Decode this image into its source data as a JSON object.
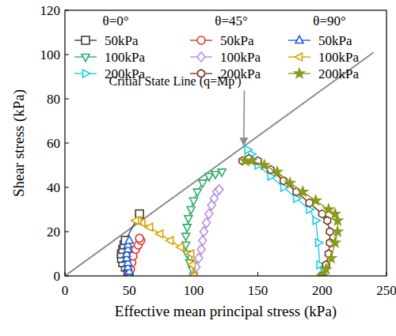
{
  "chart_data": {
    "type": "line",
    "x_label": "Effective mean principal stress (kPa)",
    "y_label": "Shear stress (kPa)",
    "xlim": [
      0,
      250
    ],
    "ylim": [
      0,
      120
    ],
    "xticks": [
      0,
      50,
      100,
      150,
      200,
      250
    ],
    "yticks": [
      0,
      20,
      40,
      60,
      80,
      100,
      120
    ],
    "grid": false,
    "legend": "upper left",
    "reference_line": {
      "label": "Critial State Line (q=Mp')",
      "color": "#8c8c8c",
      "x": [
        0,
        240
      ],
      "y": [
        0,
        101
      ],
      "arrow_xy": [
        139,
        59
      ],
      "text_xy": [
        137,
        86
      ]
    },
    "series": [
      {
        "name": "50kPa",
        "group": "θ=0°",
        "color": "#404040",
        "marker": "square",
        "line_style": "solid",
        "x": [
          50,
          49,
          47,
          45,
          44,
          44,
          45,
          46,
          47,
          58
        ],
        "values": [
          0,
          2,
          4,
          6,
          8,
          10,
          12,
          14,
          16,
          28
        ]
      },
      {
        "name": "100kPa",
        "group": "θ=0°",
        "color": "#2fae6a",
        "marker": "triangle-down",
        "line_style": "solid",
        "x": [
          100,
          99,
          97,
          95,
          94,
          94,
          95,
          96,
          98,
          100,
          103,
          107,
          112,
          117,
          122
        ],
        "values": [
          0,
          3,
          6,
          10,
          14,
          18,
          22,
          26,
          30,
          34,
          38,
          42,
          45,
          46,
          47
        ]
      },
      {
        "name": "200kPa",
        "group": "θ=0°",
        "color": "#19cfe6",
        "marker": "triangle-right",
        "line_style": "solid",
        "x": [
          200,
          198,
          197,
          195,
          190,
          180,
          170,
          160,
          150,
          145,
          142
        ],
        "values": [
          0,
          5,
          15,
          25,
          30,
          35,
          40,
          45,
          50,
          55,
          57
        ]
      },
      {
        "name": "50kPa",
        "group": "θ=45°",
        "color": "#e8332a",
        "marker": "circle",
        "line_style": "solid",
        "x": [
          50,
          51,
          52,
          53,
          55,
          57,
          59,
          58
        ],
        "values": [
          1,
          3,
          6,
          9,
          12,
          14,
          16,
          17
        ]
      },
      {
        "name": "100kPa",
        "group": "θ=45°",
        "color": "#b88fe8",
        "marker": "diamond",
        "line_style": "solid",
        "x": [
          100,
          102,
          104,
          106,
          107,
          108,
          110,
          112,
          114,
          116,
          118,
          120
        ],
        "values": [
          0,
          4,
          8,
          12,
          16,
          20,
          24,
          28,
          32,
          35,
          38,
          39
        ]
      },
      {
        "name": "200kPa",
        "group": "θ=45°",
        "color": "#7a3a2a",
        "marker": "hexagon",
        "line_style": "solid",
        "x": [
          200,
          203,
          205,
          206,
          206,
          204,
          200,
          190,
          180,
          170,
          160,
          150,
          143,
          138
        ],
        "values": [
          0,
          5,
          10,
          15,
          20,
          25,
          28,
          33,
          38,
          43,
          48,
          52,
          53,
          52
        ]
      },
      {
        "name": "50kPa",
        "group": "θ=90°",
        "color": "#2060e0",
        "marker": "triangle-up",
        "line_style": "solid",
        "x": [
          50,
          50,
          49,
          49,
          48,
          48,
          49,
          49,
          50
        ],
        "values": [
          0,
          2,
          4,
          6,
          8,
          10,
          12,
          14,
          16
        ]
      },
      {
        "name": "100kPa",
        "group": "θ=90°",
        "color": "#d9a300",
        "marker": "triangle-left",
        "line_style": "solid",
        "x": [
          100,
          99,
          98,
          90,
          82,
          74,
          66,
          60,
          57,
          55
        ],
        "values": [
          0,
          5,
          10,
          13,
          16,
          19,
          22,
          24,
          25,
          25
        ]
      },
      {
        "name": "200kPa",
        "group": "θ=90°",
        "color": "#8a9a1a",
        "marker": "star",
        "line_style": "solid",
        "x": [
          200,
          203,
          207,
          210,
          212,
          212,
          210,
          205,
          195,
          185,
          175,
          165,
          155,
          145,
          140
        ],
        "values": [
          0,
          3,
          8,
          15,
          20,
          25,
          28,
          30,
          34,
          38,
          42,
          47,
          50,
          52,
          52
        ]
      }
    ]
  }
}
